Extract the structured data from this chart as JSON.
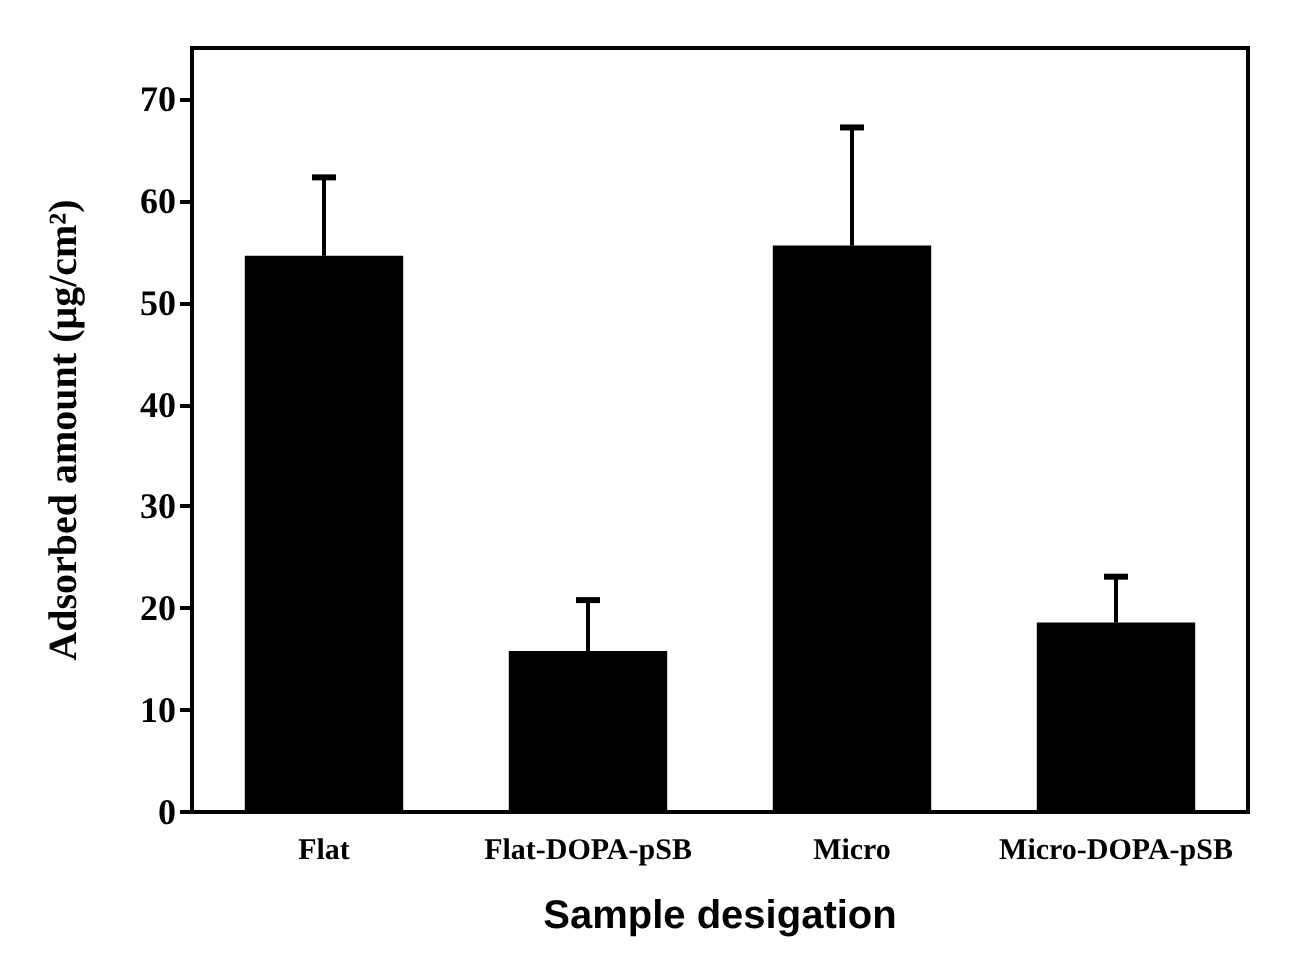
{
  "chart_data": {
    "type": "bar",
    "xlabel": "Sample desigation",
    "ylabel": "Adsorbed amount (μg/cm²)",
    "categories": [
      "Flat",
      "Flat-DOPA-pSB",
      "Micro",
      "Micro-DOPA-pSB"
    ],
    "values": [
      54.6,
      15.8,
      55.6,
      18.6
    ],
    "errors": [
      [
        54.6,
        62.3
      ],
      [
        15.8,
        20.8
      ],
      [
        55.6,
        67.2
      ],
      [
        18.6,
        23.1
      ]
    ],
    "color": "#000000",
    "ylim": [
      0,
      75
    ],
    "yticks": [
      0,
      10,
      20,
      30,
      40,
      50,
      60,
      70
    ],
    "grid": false
  }
}
